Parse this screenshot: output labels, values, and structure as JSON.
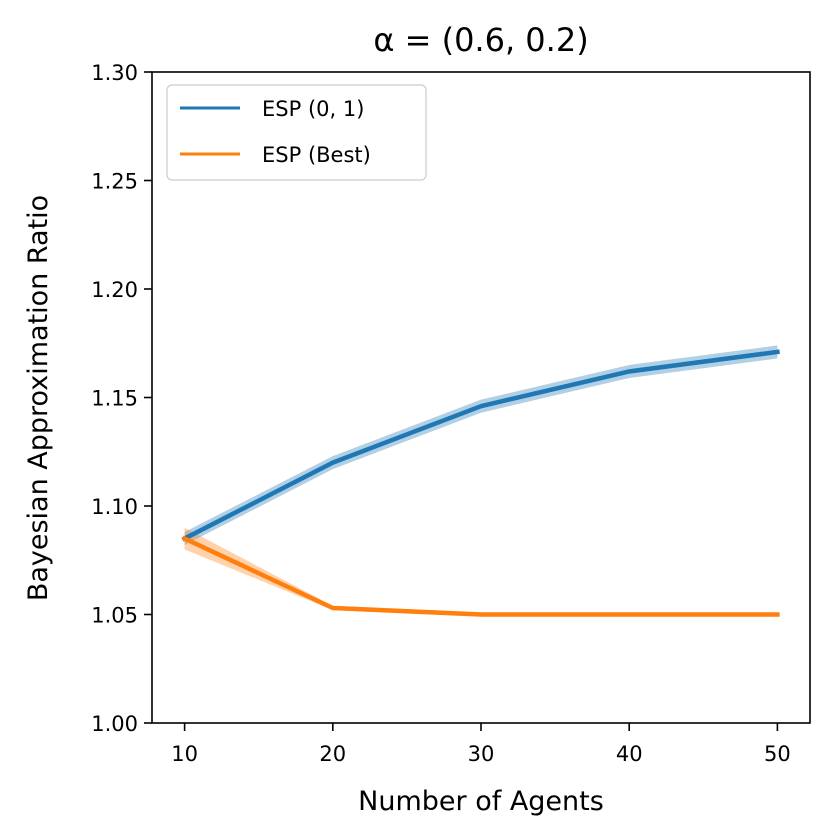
{
  "chart_data": {
    "type": "line",
    "title": "α = (0.6, 0.2)",
    "xlabel": "Number of Agents",
    "ylabel": "Bayesian Approximation Ratio",
    "x": [
      10,
      20,
      30,
      40,
      50
    ],
    "xlim": [
      7.8,
      52.2
    ],
    "ylim": [
      1.0,
      1.3
    ],
    "xticks": [
      10,
      20,
      30,
      40,
      50
    ],
    "xtick_labels": [
      "10",
      "20",
      "30",
      "40",
      "50"
    ],
    "yticks": [
      1.0,
      1.05,
      1.1,
      1.15,
      1.2,
      1.25,
      1.3
    ],
    "ytick_labels": [
      "1.00",
      "1.05",
      "1.10",
      "1.15",
      "1.20",
      "1.25",
      "1.30"
    ],
    "grid": false,
    "legend_position": "top-left",
    "series": [
      {
        "name": "ESP (0, 1)",
        "color": "#1f77b4",
        "values": [
          1.085,
          1.12,
          1.146,
          1.162,
          1.171
        ],
        "lower": [
          1.082,
          1.117,
          1.143,
          1.159,
          1.168
        ],
        "upper": [
          1.088,
          1.123,
          1.149,
          1.165,
          1.174
        ]
      },
      {
        "name": "ESP (Best)",
        "color": "#ff7f0e",
        "values": [
          1.085,
          1.053,
          1.05,
          1.05,
          1.05
        ],
        "lower": [
          1.08,
          1.052,
          1.049,
          1.049,
          1.049
        ],
        "upper": [
          1.09,
          1.054,
          1.051,
          1.051,
          1.051
        ]
      }
    ]
  }
}
